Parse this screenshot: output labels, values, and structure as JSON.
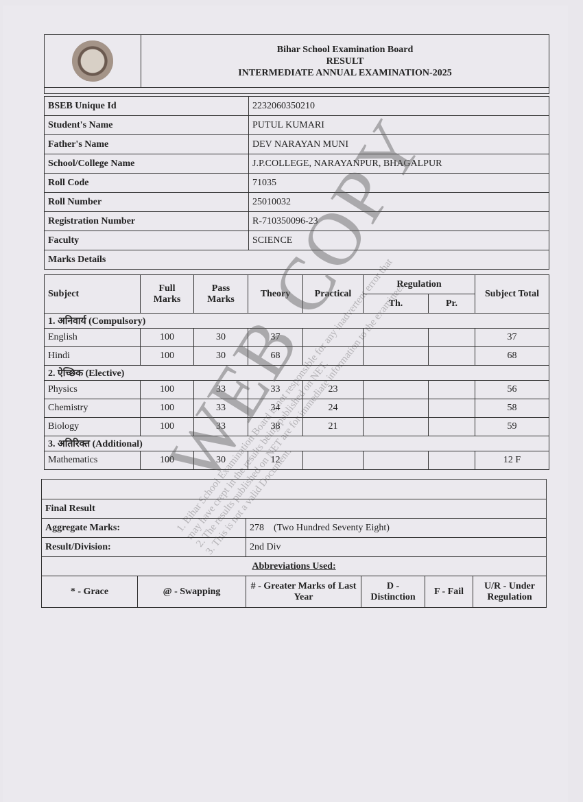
{
  "header": {
    "board": "Bihar School Examination Board",
    "result": "RESULT",
    "exam": "INTERMEDIATE ANNUAL EXAMINATION-2025"
  },
  "info": [
    {
      "label": "BSEB Unique Id",
      "value": "2232060350210"
    },
    {
      "label": "Student's Name",
      "value": "PUTUL KUMARI"
    },
    {
      "label": "Father's Name",
      "value": "DEV NARAYAN MUNI"
    },
    {
      "label": "School/College Name",
      "value": "J.P.COLLEGE, NARAYANPUR, BHAGALPUR"
    },
    {
      "label": "Roll Code",
      "value": "71035"
    },
    {
      "label": "Roll Number",
      "value": "25010032"
    },
    {
      "label": "Registration Number",
      "value": "R-710350096-23"
    },
    {
      "label": "Faculty",
      "value": "SCIENCE"
    }
  ],
  "marks_details_label": "Marks Details",
  "columns": {
    "subject": "Subject",
    "full": "Full Marks",
    "pass": "Pass Marks",
    "theory": "Theory",
    "practical": "Practical",
    "regulation": "Regulation",
    "th": "Th.",
    "pr": "Pr.",
    "total": "Subject Total"
  },
  "sections": [
    {
      "title": "1. अनिवार्य (Compulsory)",
      "rows": [
        {
          "subject": "English",
          "full": "100",
          "pass": "30",
          "theory": "37",
          "practical": "",
          "th": "",
          "pr": "",
          "total": "37"
        },
        {
          "subject": "Hindi",
          "full": "100",
          "pass": "30",
          "theory": "68",
          "practical": "",
          "th": "",
          "pr": "",
          "total": "68"
        }
      ]
    },
    {
      "title": "2. ऐच्छिक (Elective)",
      "rows": [
        {
          "subject": "Physics",
          "full": "100",
          "pass": "33",
          "theory": "33",
          "practical": "23",
          "th": "",
          "pr": "",
          "total": "56"
        },
        {
          "subject": "Chemistry",
          "full": "100",
          "pass": "33",
          "theory": "34",
          "practical": "24",
          "th": "",
          "pr": "",
          "total": "58"
        },
        {
          "subject": "Biology",
          "full": "100",
          "pass": "33",
          "theory": "38",
          "practical": "21",
          "th": "",
          "pr": "",
          "total": "59"
        }
      ]
    },
    {
      "title": "3. अतिरिक्त (Additional)",
      "rows": [
        {
          "subject": "Mathematics",
          "full": "100",
          "pass": "30",
          "theory": "12",
          "practical": "",
          "th": "",
          "pr": "",
          "total": "12 F"
        }
      ]
    }
  ],
  "final": {
    "label": "Final Result",
    "aggregate_label": "Aggregate Marks:",
    "aggregate_value": "278    (Two Hundred Seventy Eight)",
    "division_label": "Result/Division:",
    "division_value": "2nd Div"
  },
  "abbreviations": {
    "title": "Abbreviations Used:",
    "items": [
      "* - Grace",
      "@ - Swapping",
      "# - Greater Marks of Last Year",
      "D - Distinction",
      "F - Fail",
      "U/R - Under Regulation"
    ]
  },
  "watermark": {
    "text": "WEB COPY",
    "lines": [
      "1. Bihar School Examination Board is not responsible for any inadvertent error that",
      "may have crept in the results being published on NET.",
      "2. The results published on NET are for immediate information to the examinees.",
      "3. This is not a valid Document."
    ]
  }
}
